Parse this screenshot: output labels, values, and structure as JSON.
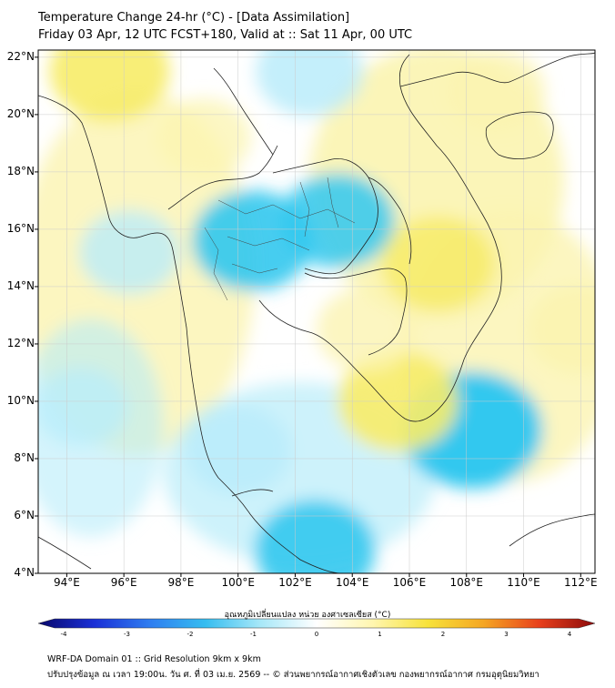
{
  "header": {
    "title": "Temperature Change 24-hr (°C) - [Data Assimilation]",
    "subtitle": "Friday 03 Apr, 12 UTC FCST+180, Valid at :: Sat 11 Apr, 00 UTC"
  },
  "map": {
    "lat_labels": [
      "22°N",
      "20°N",
      "18°N",
      "16°N",
      "14°N",
      "12°N",
      "10°N",
      "8°N",
      "6°N",
      "4°N"
    ],
    "lon_labels": [
      "94°E",
      "96°E",
      "98°E",
      "100°E",
      "102°E",
      "104°E",
      "106°E",
      "108°E",
      "110°E",
      "112°E"
    ],
    "lat_range": [
      4,
      22
    ],
    "lon_range": [
      93,
      112.5
    ],
    "palette": {
      "warm": "#f7ec6a",
      "warm_light": "#fbf4b0",
      "cool": "#33c8ef",
      "cool_light": "#b8ecfa",
      "neutral": "#ffffff",
      "border": "#222222",
      "grid": "#cccccc"
    },
    "anomaly_features": [
      {
        "name": "central-thailand-cooling",
        "lon": 100.5,
        "lat": 15.6,
        "value": -0.9
      },
      {
        "name": "northeast-thailand-cooling",
        "lon": 103.5,
        "lat": 16.3,
        "value": -0.8
      },
      {
        "name": "northern-thailand-cooling",
        "lon": 102.5,
        "lat": 21.5,
        "value": -0.7
      },
      {
        "name": "south-china-sea-cooling",
        "lon": 108.2,
        "lat": 9.0,
        "value": -1.2
      },
      {
        "name": "malaysia-cooling",
        "lon": 102.7,
        "lat": 4.8,
        "value": -0.9
      },
      {
        "name": "peninsula-cooling",
        "lon": 100.0,
        "lat": 8.3,
        "value": -0.7
      },
      {
        "name": "andaman-cooling",
        "lon": 96.2,
        "lat": 15.2,
        "value": -0.6
      },
      {
        "name": "bay-cooling",
        "lon": 94.5,
        "lat": 9.8,
        "value": -0.5
      },
      {
        "name": "myanmar-warming",
        "lon": 95.5,
        "lat": 21.5,
        "value": 0.9
      },
      {
        "name": "vietnam-warming",
        "lon": 107.0,
        "lat": 14.8,
        "value": 0.8
      },
      {
        "name": "mekong-warming",
        "lon": 105.6,
        "lat": 10.0,
        "value": 0.9
      },
      {
        "name": "cambodia-warming",
        "lon": 104.5,
        "lat": 12.5,
        "value": 0.6
      },
      {
        "name": "laos-warming",
        "lon": 98.8,
        "lat": 19.2,
        "value": 0.5
      },
      {
        "name": "east-sea-warming",
        "lon": 112.0,
        "lat": 12.5,
        "value": 0.7
      },
      {
        "name": "gulf-china-warming",
        "lon": 109.0,
        "lat": 20.8,
        "value": 0.6
      }
    ]
  },
  "colorbar": {
    "label": "อุณหภูมิเปลี่ยนแปลง หน่วย องศาเซลเซียส (°C)",
    "ticks": [
      "-4",
      "-3",
      "-2",
      "-1",
      "0",
      "1",
      "2",
      "3",
      "4"
    ],
    "range": [
      -4,
      4
    ],
    "colors": [
      "#08086b",
      "#1a2fd6",
      "#2f7df0",
      "#35bdf0",
      "#a8e8f8",
      "#ffffff",
      "#fff6b0",
      "#f7e23a",
      "#f5a623",
      "#e8401c",
      "#8c0a0a"
    ]
  },
  "footer": {
    "line1": "WRF-DA Domain 01 :: Grid Resolution 9km x 9km",
    "line2": "ปรับปรุงข้อมูล ณ เวลา 19:00น. วัน ศ. ที่ 03 เม.ย. 2569 -- © ส่วนพยากรณ์อากาศเชิงตัวเลข กองพยากรณ์อากาศ กรมอุตุนิยมวิทยา"
  }
}
